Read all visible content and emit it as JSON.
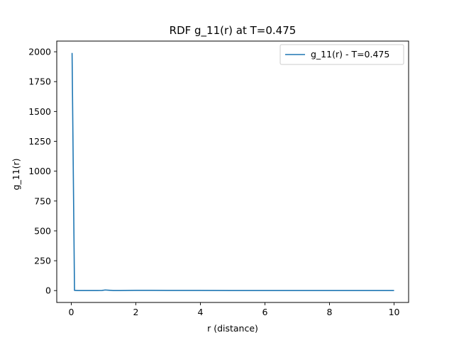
{
  "chart_data": {
    "type": "line",
    "title": "RDF g_11(r) at T=0.475",
    "xlabel": "r (distance)",
    "ylabel": "g_11(r)",
    "xlim": [
      -0.45,
      10.45
    ],
    "ylim": [
      -99.5,
      2089.5
    ],
    "xticks": [
      0,
      2,
      4,
      6,
      8,
      10
    ],
    "yticks": [
      0,
      250,
      500,
      750,
      1000,
      1250,
      1500,
      1750,
      2000
    ],
    "grid": false,
    "legend_position": "upper right",
    "series": [
      {
        "name": "g_11(r) - T=0.475",
        "color": "#1f77b4",
        "x": [
          0.025,
          0.1,
          0.2,
          0.4,
          0.6,
          0.8,
          0.95,
          1.05,
          1.15,
          1.3,
          1.5,
          2.0,
          2.5,
          3.0,
          4.0,
          5.0,
          6.0,
          7.0,
          8.0,
          9.0,
          10.0
        ],
        "y": [
          1990,
          2,
          0,
          0,
          0,
          0,
          1,
          5,
          3,
          0,
          0,
          2,
          1.5,
          1,
          0.8,
          0.5,
          0.3,
          0.2,
          0.1,
          0.1,
          0
        ]
      }
    ]
  }
}
